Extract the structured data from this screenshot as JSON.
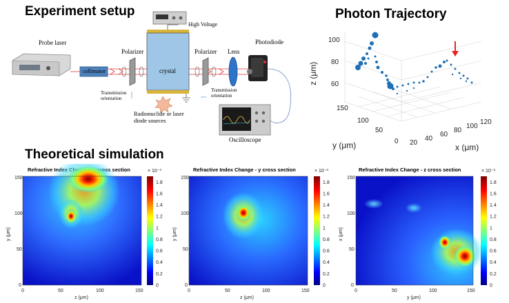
{
  "headings": {
    "setup": "Experiment setup",
    "trajectory": "Photon Trajectory",
    "simulation": "Theoretical simulation"
  },
  "setup": {
    "probe_laser": "Probe laser",
    "collimator": "collimator",
    "polarizer_left": "Polarizer",
    "polarizer_right": "Polarizer",
    "crystal": "crystal",
    "lens": "Lens",
    "photodiode": "Photodiode",
    "high_voltage": "High Voltage",
    "transmission_left": "Transmission\norientation",
    "transmission_right": "Transmission\norientation",
    "source": "Radionuclide or laser\ndiode sources",
    "oscilloscope": "Oscilloscope"
  },
  "trajectory_plot": {
    "z_label": "z (μm)",
    "y_label": "y (μm)",
    "x_label": "x (μm)",
    "z_ticks": [
      "100",
      "80",
      "60"
    ],
    "y_ticks": [
      "150",
      "100",
      "50",
      "0"
    ],
    "x_ticks": [
      "20",
      "40",
      "60",
      "80",
      "100",
      "120"
    ],
    "marker_color": "#1f6fb5",
    "arrow_color": "#e8231f"
  },
  "heatmaps": [
    {
      "title": "Refractive Index Change - x cross section",
      "xlabel": "z (μm)",
      "ylabel": "y (μm)",
      "xticks": [
        "0",
        "50",
        "100",
        "150"
      ],
      "yticks": [
        "150",
        "100",
        "50",
        "0"
      ]
    },
    {
      "title": "Refractive Index Change - y cross section",
      "xlabel": "z (μm)",
      "ylabel": "y (μm)",
      "xticks": [
        "0",
        "50",
        "100",
        "150"
      ],
      "yticks": [
        "150",
        "100",
        "50",
        "0"
      ]
    },
    {
      "title": "Refractive Index Change - z cross section",
      "xlabel": "y (μm)",
      "ylabel": "x (μm)",
      "xticks": [
        "0",
        "50",
        "100",
        "150"
      ],
      "yticks": [
        "150",
        "100",
        "50",
        "0"
      ]
    }
  ],
  "colorbar": {
    "exponent": "× 10⁻³",
    "ticks": [
      "1.8",
      "1.6",
      "1.4",
      "1.2",
      "1",
      "0.8",
      "0.6",
      "0.4",
      "0.2",
      "0"
    ]
  }
}
